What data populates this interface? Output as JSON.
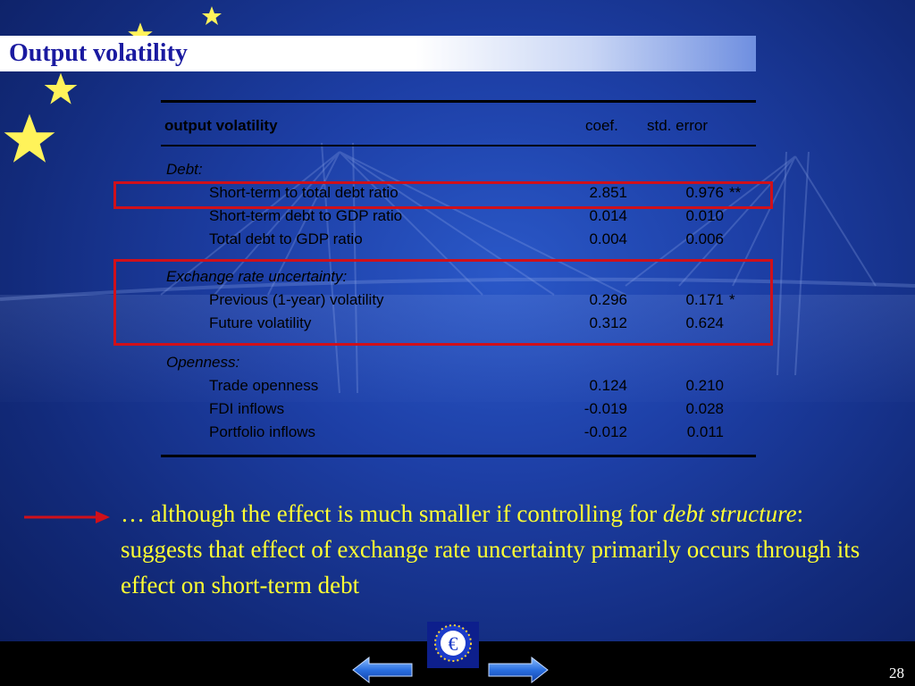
{
  "slide": {
    "title": "Output volatility",
    "page_number": "28"
  },
  "table": {
    "header": {
      "label": "output volatility",
      "coef": "coef.",
      "se": "std. error"
    },
    "groups": [
      {
        "name": "Debt:",
        "rows": [
          {
            "label": "Short-term to total debt ratio",
            "coef": "2.851",
            "se": "0.976",
            "sig": "**"
          },
          {
            "label": "Short-term debt to GDP ratio",
            "coef": "0.014",
            "se": "0.010",
            "sig": ""
          },
          {
            "label": "Total debt to GDP ratio",
            "coef": "0.004",
            "se": "0.006",
            "sig": ""
          }
        ]
      },
      {
        "name": "Exchange rate uncertainty:",
        "rows": [
          {
            "label": "Previous (1-year) volatility",
            "coef": "0.296",
            "se": "0.171",
            "sig": "*"
          },
          {
            "label": "Future volatility",
            "coef": "0.312",
            "se": "0.624",
            "sig": ""
          }
        ]
      },
      {
        "name": "Openness:",
        "rows": [
          {
            "label": "Trade openness",
            "coef": "0.124",
            "se": "0.210",
            "sig": ""
          },
          {
            "label": "FDI inflows",
            "coef": "-0.019",
            "se": "0.028",
            "sig": ""
          },
          {
            "label": "Portfolio inflows",
            "coef": "-0.012",
            "se": "0.011",
            "sig": ""
          }
        ]
      }
    ]
  },
  "caption": {
    "part1": "… although the effect is much smaller if controlling for ",
    "emph": "debt structure",
    "part2": ": suggests that effect of exchange rate uncertainty primarily occurs through its effect on short-term debt"
  },
  "colors": {
    "highlight_box": "#d0101a",
    "caption_text": "#ffff33",
    "title_text": "#1a1aa0"
  },
  "icons": {
    "nav_prev": "arrow-left-icon",
    "nav_next": "arrow-right-icon",
    "logo": "euro-logo-icon"
  }
}
